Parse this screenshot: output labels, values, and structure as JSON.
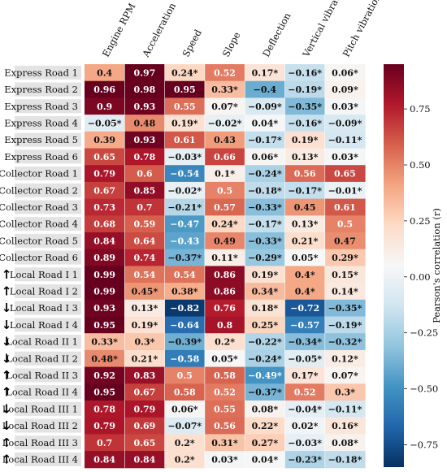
{
  "chart_data": {
    "type": "heatmap",
    "columns": [
      "Engine RPM",
      "Acceleration",
      "Speed",
      "Slope",
      "Deflection",
      "Vertical vibration",
      "Pitch vibration"
    ],
    "rows": [
      "Express Road 1",
      "Express Road 2",
      "Express Road 3",
      "Express Road 4",
      "Express Road 5",
      "Express Road 6",
      "Collector Road 1",
      "Collector Road 2",
      "Collector Road 3",
      "Collector Road 4",
      "Collector Road 5",
      "Collector Road 6",
      "Local Road I 1",
      "Local Road I 2",
      "Local Road I 3",
      "Local Road I 4",
      "Local Road II 1",
      "Local Road II 2",
      "Local Road II 3",
      "Local Road II 4",
      "Local Road III 1",
      "Local Road III 2",
      "Local Road III 3",
      "Local Road III 4"
    ],
    "row_arrows": [
      "",
      "",
      "",
      "",
      "",
      "",
      "",
      "",
      "",
      "",
      "",
      "",
      "↑",
      "↑",
      "↓",
      "↓",
      "↓",
      "↓",
      "↑",
      "↑",
      "↓",
      "↓",
      "↑",
      "↑"
    ],
    "values": [
      [
        0.4,
        0.97,
        0.24,
        0.52,
        0.17,
        -0.16,
        0.06
      ],
      [
        0.96,
        0.98,
        0.95,
        0.33,
        -0.4,
        -0.19,
        0.09
      ],
      [
        0.9,
        0.93,
        0.55,
        0.07,
        -0.09,
        -0.35,
        0.03
      ],
      [
        -0.05,
        0.48,
        0.19,
        -0.02,
        0.04,
        -0.16,
        -0.09
      ],
      [
        0.39,
        0.93,
        0.61,
        0.43,
        -0.17,
        0.19,
        -0.11
      ],
      [
        0.65,
        0.78,
        -0.03,
        0.66,
        0.06,
        0.13,
        0.03
      ],
      [
        0.79,
        0.6,
        -0.54,
        0.1,
        -0.24,
        0.56,
        0.65
      ],
      [
        0.67,
        0.85,
        -0.02,
        0.5,
        -0.18,
        -0.17,
        -0.01
      ],
      [
        0.73,
        0.7,
        -0.21,
        0.57,
        -0.33,
        0.45,
        0.61
      ],
      [
        0.68,
        0.59,
        -0.47,
        0.24,
        -0.17,
        0.13,
        0.5
      ],
      [
        0.84,
        0.64,
        -0.43,
        0.49,
        -0.33,
        0.21,
        0.47
      ],
      [
        0.89,
        0.74,
        -0.37,
        0.11,
        -0.29,
        0.05,
        0.29
      ],
      [
        0.99,
        0.54,
        0.54,
        0.86,
        0.19,
        0.4,
        0.15
      ],
      [
        0.99,
        0.45,
        0.38,
        0.86,
        0.34,
        0.4,
        0.14
      ],
      [
        0.93,
        0.13,
        -0.82,
        0.76,
        0.18,
        -0.72,
        -0.35
      ],
      [
        0.95,
        0.19,
        -0.64,
        0.8,
        0.25,
        -0.57,
        -0.19
      ],
      [
        0.33,
        0.3,
        -0.39,
        0.2,
        -0.22,
        -0.34,
        -0.32
      ],
      [
        0.48,
        0.21,
        -0.58,
        0.05,
        -0.24,
        -0.05,
        0.12
      ],
      [
        0.92,
        0.83,
        0.5,
        0.58,
        -0.49,
        0.17,
        0.07
      ],
      [
        0.95,
        0.67,
        0.58,
        0.52,
        -0.37,
        0.52,
        0.3
      ],
      [
        0.78,
        0.79,
        0.06,
        0.55,
        0.08,
        -0.04,
        -0.11
      ],
      [
        0.79,
        0.69,
        -0.07,
        0.56,
        0.22,
        0.02,
        0.16
      ],
      [
        0.7,
        0.65,
        0.2,
        0.31,
        0.27,
        -0.03,
        0.08
      ],
      [
        0.84,
        0.84,
        0.2,
        0.03,
        0.04,
        -0.23,
        -0.18
      ]
    ],
    "labels": [
      [
        "0.4",
        "0.97",
        "0.24*",
        "0.52",
        "0.17*",
        "−0.16*",
        "0.06*"
      ],
      [
        "0.96",
        "0.98",
        "0.95",
        "0.33*",
        "−0.4",
        "−0.19*",
        "0.09*"
      ],
      [
        "0.9",
        "0.93",
        "0.55",
        "0.07*",
        "−0.09*",
        "−0.35*",
        "0.03*"
      ],
      [
        "−0.05*",
        "0.48",
        "0.19*",
        "−0.02*",
        "0.04*",
        "−0.16*",
        "−0.09*"
      ],
      [
        "0.39",
        "0.93",
        "0.61",
        "0.43",
        "−0.17*",
        "0.19*",
        "−0.11*"
      ],
      [
        "0.65",
        "0.78",
        "−0.03*",
        "0.66",
        "0.06*",
        "0.13*",
        "0.03*"
      ],
      [
        "0.79",
        "0.6",
        "−0.54",
        "0.1*",
        "−0.24*",
        "0.56",
        "0.65"
      ],
      [
        "0.67",
        "0.85",
        "−0.02*",
        "0.5",
        "−0.18*",
        "−0.17*",
        "−0.01*"
      ],
      [
        "0.73",
        "0.7",
        "−0.21*",
        "0.57",
        "−0.33*",
        "0.45",
        "0.61"
      ],
      [
        "0.68",
        "0.59",
        "−0.47",
        "0.24*",
        "−0.17*",
        "0.13*",
        "0.5"
      ],
      [
        "0.84",
        "0.64",
        "−0.43",
        "0.49",
        "−0.33*",
        "0.21*",
        "0.47"
      ],
      [
        "0.89",
        "0.74",
        "−0.37*",
        "0.11*",
        "−0.29*",
        "0.05*",
        "0.29*"
      ],
      [
        "0.99",
        "0.54",
        "0.54",
        "0.86",
        "0.19*",
        "0.4*",
        "0.15*"
      ],
      [
        "0.99",
        "0.45*",
        "0.38*",
        "0.86",
        "0.34*",
        "0.4*",
        "0.14*"
      ],
      [
        "0.93",
        "0.13*",
        "−0.82",
        "0.76",
        "0.18*",
        "−0.72",
        "−0.35*"
      ],
      [
        "0.95",
        "0.19*",
        "−0.64",
        "0.8",
        "0.25*",
        "−0.57",
        "−0.19*"
      ],
      [
        "0.33*",
        "0.3*",
        "−0.39*",
        "0.2*",
        "−0.22*",
        "−0.34*",
        "−0.32*"
      ],
      [
        "0.48*",
        "0.21*",
        "−0.58",
        "0.05*",
        "−0.24*",
        "−0.05*",
        "0.12*"
      ],
      [
        "0.92",
        "0.83",
        "0.5",
        "0.58",
        "−0.49*",
        "0.17*",
        "0.07*"
      ],
      [
        "0.95",
        "0.67",
        "0.58",
        "0.52",
        "−0.37*",
        "0.52",
        "0.3*"
      ],
      [
        "0.78",
        "0.79",
        "0.06*",
        "0.55",
        "0.08*",
        "−0.04*",
        "−0.11*"
      ],
      [
        "0.79",
        "0.69",
        "−0.07*",
        "0.56",
        "0.22*",
        "0.02*",
        "0.16*"
      ],
      [
        "0.7",
        "0.65",
        "0.2*",
        "0.31*",
        "0.27*",
        "−0.03*",
        "0.08*"
      ],
      [
        "0.84",
        "0.84",
        "0.2*",
        "0.03*",
        "0.04*",
        "−0.23*",
        "−0.18*"
      ]
    ],
    "colorscale": "RdBu (reversed)",
    "vmin": -0.85,
    "vmax": 0.95,
    "colorbar": {
      "label": "Pearson's correlation (r)",
      "ticks": [
        -0.75,
        -0.5,
        -0.25,
        0.0,
        0.25,
        0.5,
        0.75
      ],
      "tick_labels": [
        "−0.75",
        "−0.50",
        "−0.25",
        "0.00",
        "0.25",
        "0.50",
        "0.75"
      ]
    }
  },
  "colors": {
    "row_label_bg": "#e3e3e3",
    "negative_max": "#053061",
    "neutral": "#f7f7f7",
    "positive_max": "#67001f"
  }
}
